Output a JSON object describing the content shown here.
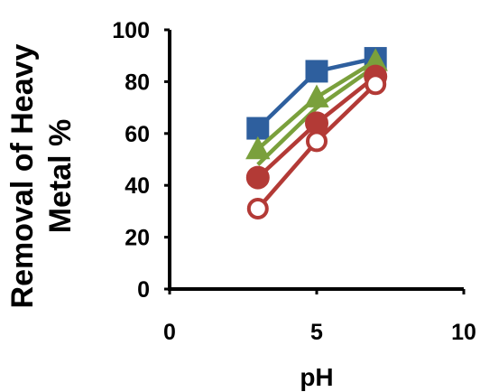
{
  "chart_data": {
    "type": "line",
    "title": "",
    "xlabel": "pH",
    "ylabel_lines": [
      "Removal of Heavy",
      "Metal %"
    ],
    "xlim": [
      0,
      10
    ],
    "ylim": [
      0,
      100
    ],
    "x_ticks": [
      "0",
      "5",
      "10"
    ],
    "y_ticks": [
      "0",
      "20",
      "40",
      "60",
      "80",
      "100"
    ],
    "grid": false,
    "legend": "none",
    "x": [
      3,
      5,
      7
    ],
    "series": [
      {
        "marker": "square",
        "filled": true,
        "color": "#2e5f9e",
        "values": [
          62,
          84,
          89
        ]
      },
      {
        "marker": "triangle",
        "filled": true,
        "color": "#7aa03c",
        "values": [
          54,
          74,
          88
        ]
      },
      {
        "marker": "none",
        "filled": false,
        "color": "#7aa03c",
        "values": [
          48,
          70,
          86
        ]
      },
      {
        "marker": "circle",
        "filled": true,
        "color": "#b33a36",
        "values": [
          43,
          64,
          82
        ]
      },
      {
        "marker": "circle",
        "filled": false,
        "color": "#b33a36",
        "values": [
          31,
          57,
          79
        ]
      }
    ]
  }
}
